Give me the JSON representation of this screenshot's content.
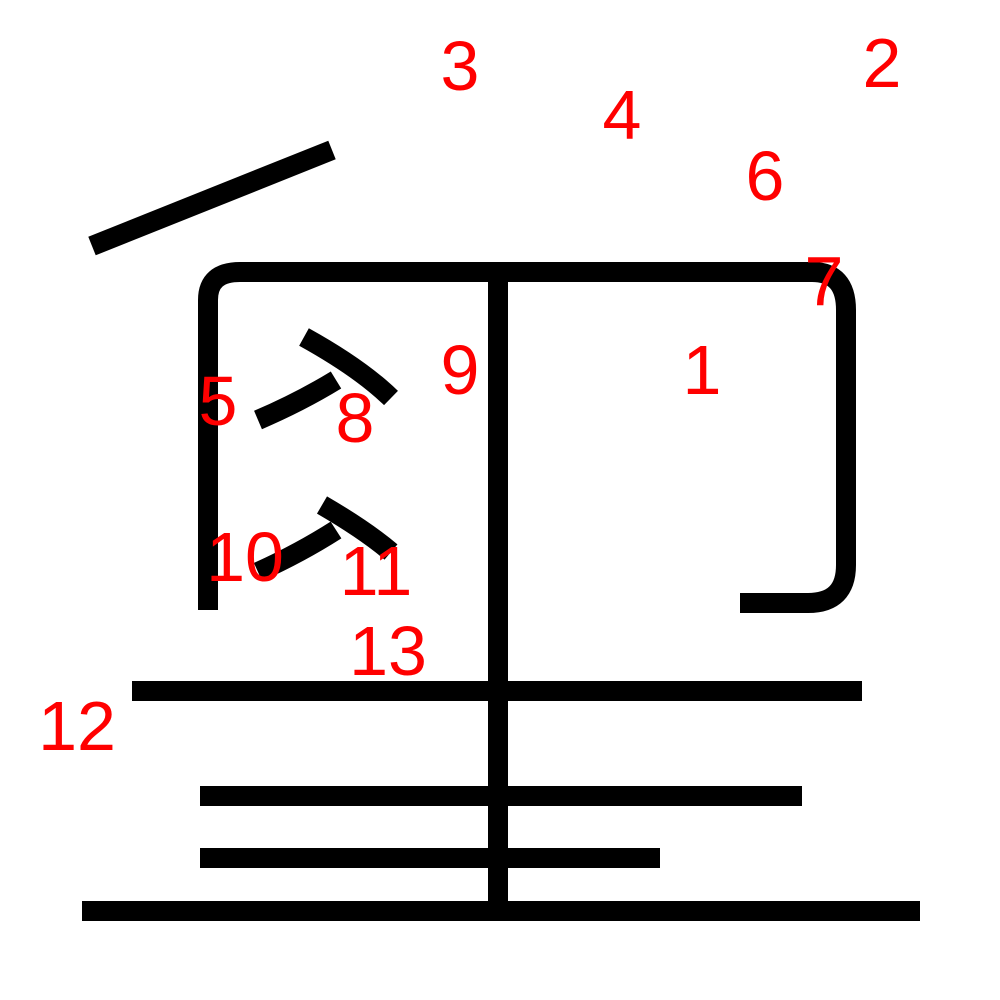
{
  "colors": {
    "stroke": "#000000",
    "label": "#ff0000",
    "background": "#ffffff"
  },
  "diagram": {
    "strokes": [
      {
        "id": "stroke-1"
      },
      {
        "id": "stroke-2"
      },
      {
        "id": "stroke-3"
      },
      {
        "id": "stroke-4"
      },
      {
        "id": "stroke-5"
      },
      {
        "id": "stroke-6"
      },
      {
        "id": "stroke-7"
      },
      {
        "id": "stroke-8"
      },
      {
        "id": "stroke-9"
      },
      {
        "id": "stroke-10"
      },
      {
        "id": "stroke-11"
      },
      {
        "id": "stroke-12"
      },
      {
        "id": "stroke-13"
      }
    ],
    "labels": [
      "1",
      "2",
      "3",
      "4",
      "5",
      "6",
      "7",
      "8",
      "9",
      "10",
      "11",
      "12",
      "13"
    ]
  }
}
